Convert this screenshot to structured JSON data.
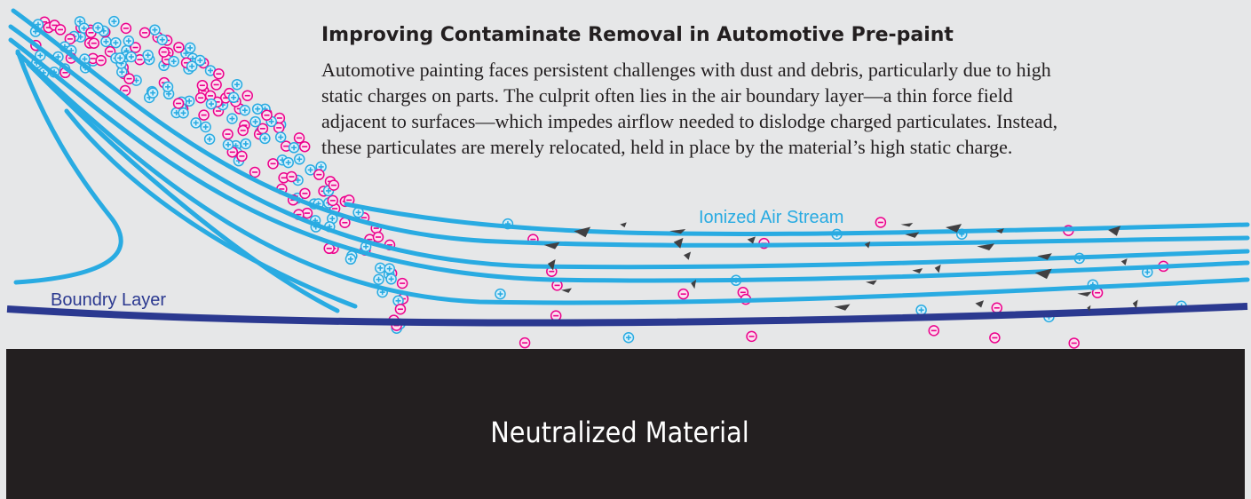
{
  "header": {
    "title": "Improving Contaminate Removal in Automotive Pre-paint",
    "body_lines": [
      "Automotive painting faces persistent challenges with dust and debris, particularly due to high",
      "static charges on parts. The culprit often lies in the air boundary layer—a thin force field",
      "adjacent to surfaces—which impedes airflow needed to dislodge charged particulates. Instead,",
      "these particulates are merely relocated, held in place by the material’s high static charge."
    ]
  },
  "labels": {
    "air_stream": "Ionized Air Stream",
    "boundary_layer": "Boundry Layer",
    "material": "Neutralized Material"
  }
}
